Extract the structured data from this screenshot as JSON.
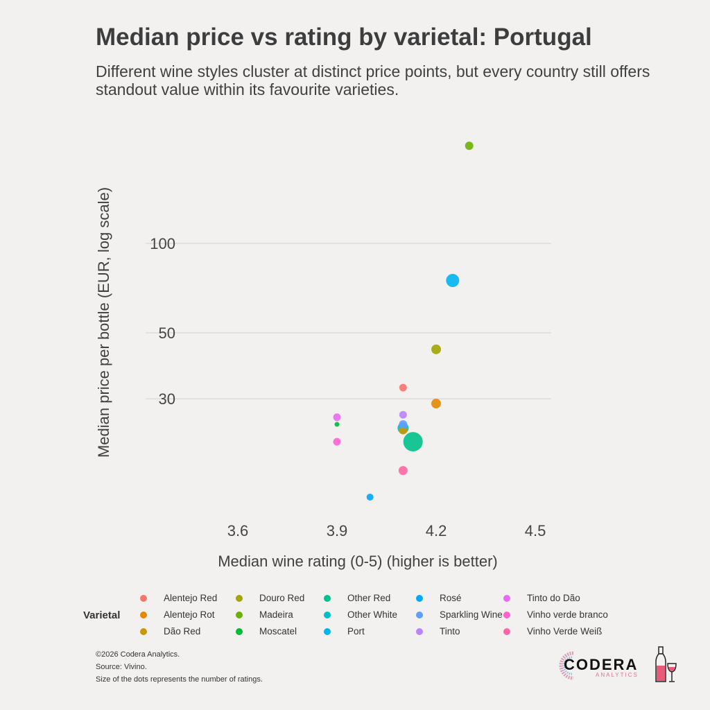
{
  "chart_data": {
    "type": "scatter",
    "title": "Median price vs rating by varietal: Portugal",
    "subtitle": "Different wine styles cluster at distinct price points, but every country still offers standout value within its favourite varieties.",
    "xlabel": "Median wine rating (0-5) (higher is better)",
    "ylabel": "Median price per bottle (EUR, log scale)",
    "x_ticks": [
      "3.6",
      "3.9",
      "4.2",
      "4.5"
    ],
    "y_ticks": [
      "30",
      "50",
      "100"
    ],
    "y_scale": "log",
    "xlim": [
      3.3,
      4.53
    ],
    "ylim": [
      12.5,
      260
    ],
    "grid": "horizontal major",
    "legend_title": "Varietal",
    "legend_placement": "bottom",
    "size_meaning": "number of ratings",
    "series": [
      {
        "name": "Alentejo Red",
        "color": "#f8766d",
        "x": 4.1,
        "y": 32.7,
        "size": 5.5
      },
      {
        "name": "Alentejo Rot",
        "color": "#e58700",
        "x": 4.2,
        "y": 28.9,
        "size": 7
      },
      {
        "name": "Dão Red",
        "color": "#c99800",
        "x": 4.1,
        "y": 23.5,
        "size": 6
      },
      {
        "name": "Douro Red",
        "color": "#a3a500",
        "x": 4.2,
        "y": 44,
        "size": 7
      },
      {
        "name": "Madeira",
        "color": "#6bb100",
        "x": 4.3,
        "y": 213,
        "size": 6
      },
      {
        "name": "Moscatel",
        "color": "#00ba38",
        "x": 3.9,
        "y": 24.6,
        "size": 3.5
      },
      {
        "name": "Other Red",
        "color": "#00c08b",
        "x": 4.13,
        "y": 21.5,
        "size": 14
      },
      {
        "name": "Other White",
        "color": "#00bfc4",
        "x": 4.1,
        "y": 23.9,
        "size": 8
      },
      {
        "name": "Port",
        "color": "#00b4f0",
        "x": 4.25,
        "y": 75,
        "size": 9.5
      },
      {
        "name": "Rosé",
        "color": "#00a9ff",
        "x": 4.0,
        "y": 14.0,
        "size": 5
      },
      {
        "name": "Sparkling Wine",
        "color": "#619cff",
        "x": 4.1,
        "y": 24.6,
        "size": 6
      },
      {
        "name": "Tinto",
        "color": "#b983ff",
        "x": 4.1,
        "y": 26.5,
        "size": 5.5
      },
      {
        "name": "Tinto do Dão",
        "color": "#e76bf3",
        "x": 3.9,
        "y": 26,
        "size": 5.5
      },
      {
        "name": "Vinho verde branco",
        "color": "#fd61d1",
        "x": 3.9,
        "y": 21.5,
        "size": 5.5
      },
      {
        "name": "Vinho Verde Weiß",
        "color": "#ff67a4",
        "x": 4.1,
        "y": 17.2,
        "size": 6.5
      }
    ]
  },
  "caption": {
    "copyright": "©2026 Codera Analytics.",
    "source": "Source: Vivino.",
    "note": "Size of the dots represents the number of ratings."
  },
  "logo": {
    "main": "CODERA",
    "sub": "ANALYTICS"
  }
}
